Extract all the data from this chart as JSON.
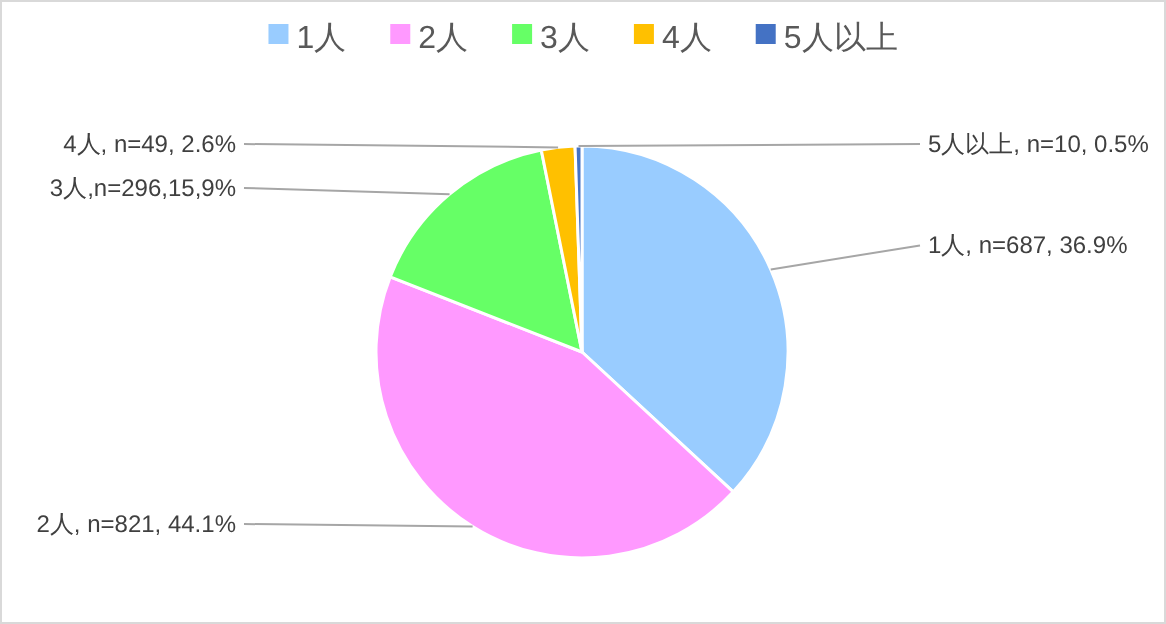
{
  "chart_data": {
    "type": "pie",
    "categories": [
      "1人",
      "2人",
      "3人",
      "4人",
      "5人以上"
    ],
    "values": [
      687,
      821,
      296,
      49,
      10
    ],
    "colors": [
      "#99ccff",
      "#ff99ff",
      "#66ff66",
      "#ffc000",
      "#4472c4"
    ],
    "value_labels": [
      "1人, n=687, 36.9%",
      "2人, n=821, 44.1%",
      "3人,n=296,15,9%",
      "4人, n=49, 2.6%",
      "5人以上, n=10, 0.5%"
    ],
    "legend": "top"
  }
}
